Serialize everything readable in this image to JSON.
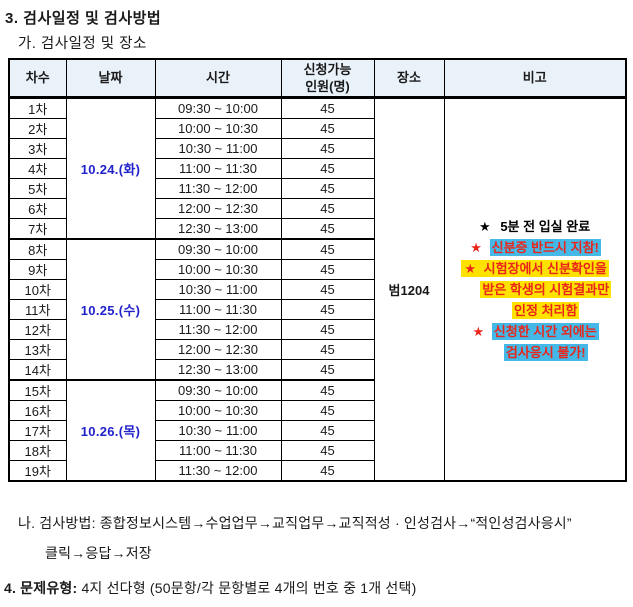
{
  "page": {
    "title": "3. 검사일정 및 검사방법",
    "subtitle": "가. 검사일정 및 장소"
  },
  "colors": {
    "header_bg": "#e9f1f9",
    "date_blue": "#2222cc",
    "red": "#ea261b",
    "highlight_cyan": "#44b8e6",
    "highlight_yellow": "#ffe200"
  },
  "table": {
    "headers": [
      "차수",
      "날짜",
      "시간",
      "신청가능\n인원(명)",
      "장소",
      "비고"
    ],
    "rows": [
      {
        "round": "1차",
        "time": "09:30 ~ 10:00",
        "capacity": "45"
      },
      {
        "round": "2차",
        "time": "10:00 ~ 10:30",
        "capacity": "45"
      },
      {
        "round": "3차",
        "time": "10:30 ~ 11:00",
        "capacity": "45"
      },
      {
        "round": "4차",
        "time": "11:00 ~ 11:30",
        "capacity": "45"
      },
      {
        "round": "5차",
        "time": "11:30 ~ 12:00",
        "capacity": "45"
      },
      {
        "round": "6차",
        "time": "12:00 ~ 12:30",
        "capacity": "45"
      },
      {
        "round": "7차",
        "time": "12:30 ~ 13:00",
        "capacity": "45"
      },
      {
        "round": "8차",
        "time": "09:30 ~ 10:00",
        "capacity": "45"
      },
      {
        "round": "9차",
        "time": "10:00 ~ 10:30",
        "capacity": "45"
      },
      {
        "round": "10차",
        "time": "10:30 ~ 11:00",
        "capacity": "45"
      },
      {
        "round": "11차",
        "time": "11:00 ~ 11:30",
        "capacity": "45"
      },
      {
        "round": "12차",
        "time": "11:30 ~ 12:00",
        "capacity": "45"
      },
      {
        "round": "13차",
        "time": "12:00 ~ 12:30",
        "capacity": "45"
      },
      {
        "round": "14차",
        "time": "12:30 ~ 13:00",
        "capacity": "45"
      },
      {
        "round": "15차",
        "time": "09:30 ~ 10:00",
        "capacity": "45"
      },
      {
        "round": "16차",
        "time": "10:00 ~ 10:30",
        "capacity": "45"
      },
      {
        "round": "17차",
        "time": "10:30 ~ 11:00",
        "capacity": "45"
      },
      {
        "round": "18차",
        "time": "11:00 ~ 11:30",
        "capacity": "45"
      },
      {
        "round": "19차",
        "time": "11:30 ~ 12:00",
        "capacity": "45"
      }
    ],
    "date_groups": [
      {
        "label": "10.24.(화)",
        "start": 0,
        "span": 7
      },
      {
        "label": "10.25.(수)",
        "start": 7,
        "span": 7
      },
      {
        "label": "10.26.(목)",
        "start": 14,
        "span": 5
      }
    ],
    "location": "범1204",
    "star_glyph": "★",
    "notes": [
      {
        "star_color": "#000000",
        "text_color": "#000000",
        "highlight": "none",
        "star_in_highlight": false,
        "lines": [
          "5분 전 입실 완료"
        ]
      },
      {
        "star_color": "#ea261b",
        "text_color": "#ea261b",
        "highlight": "cyan",
        "star_in_highlight": false,
        "lines": [
          "신분증 반드시 지참!"
        ]
      },
      {
        "star_color": "#ea261b",
        "text_color": "#ea261b",
        "highlight": "yellow",
        "star_in_highlight": true,
        "lines": [
          "시험장에서 신분확인을",
          "받은 학생의 시험결과만",
          "인정 처리함"
        ]
      },
      {
        "star_color": "#ea261b",
        "text_color": "#ea261b",
        "highlight": "cyan",
        "star_in_highlight": false,
        "lines": [
          "신청한 시간 외에는",
          "검사응시 불가!"
        ]
      }
    ]
  },
  "method": {
    "line1": "나. 검사방법: 종합정보시스템→수업업무→교직업무→교직적성 · 인성검사→“적인성검사응시”",
    "line2": "클릭→응답→저장"
  },
  "question_type": {
    "bold": "4. 문제유형:",
    "rest": " 4지 선다형 (50문항/각 문항별로 4개의 번호 중 1개 선택)"
  }
}
